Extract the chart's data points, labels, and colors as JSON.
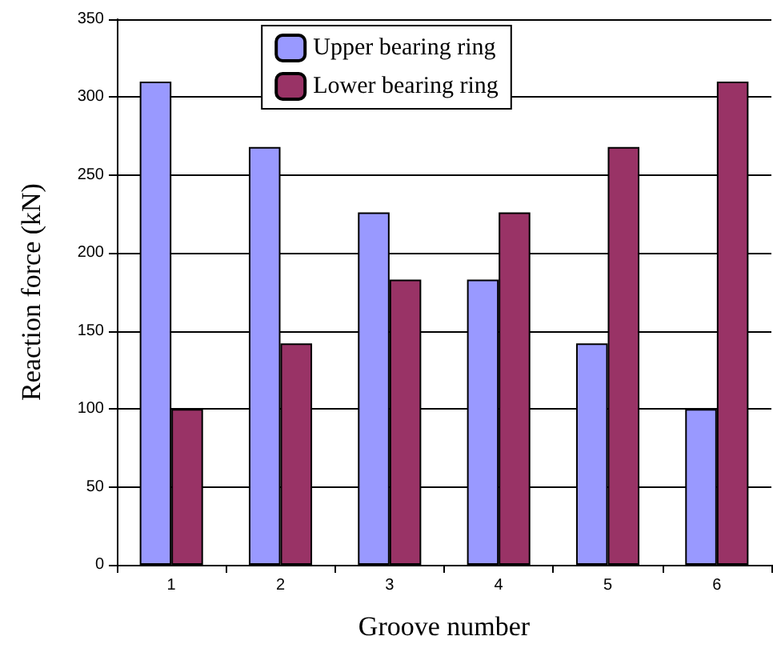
{
  "chart_data": {
    "type": "bar",
    "xlabel": "Groove number",
    "ylabel": "Reaction force (kN)",
    "categories": [
      "1",
      "2",
      "3",
      "4",
      "5",
      "6"
    ],
    "series": [
      {
        "name": "Upper bearing ring",
        "color": "#9999ff",
        "values": [
          310,
          268,
          226,
          183,
          142,
          100
        ]
      },
      {
        "name": "Lower bearing ring",
        "color": "#993366",
        "values": [
          100,
          142,
          183,
          226,
          268,
          310
        ]
      }
    ],
    "ylim": [
      0,
      350
    ],
    "yticks": [
      0,
      50,
      100,
      150,
      200,
      250,
      300,
      350
    ],
    "grid": "y",
    "legend": "top"
  }
}
